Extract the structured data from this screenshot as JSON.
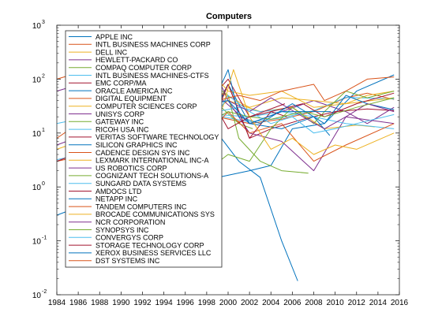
{
  "chart_data": {
    "type": "line",
    "title": "Computers",
    "xlabel": "",
    "ylabel": "",
    "y_scale": "log",
    "xlim": [
      1984,
      2016
    ],
    "ylim": [
      0.01,
      1000
    ],
    "grid": false,
    "legend_position": "top-left",
    "x_ticks": [
      1984,
      1986,
      1988,
      1990,
      1992,
      1994,
      1996,
      1998,
      2000,
      2002,
      2004,
      2006,
      2008,
      2010,
      2012,
      2014,
      2016
    ],
    "x_tick_labels": [
      "1984",
      "1986",
      "1988",
      "1990",
      "1992",
      "1994",
      "1996",
      "1998",
      "2000",
      "2002",
      "2004",
      "2006",
      "2008",
      "2010",
      "2012",
      "2014",
      "2016"
    ],
    "y_ticks": [
      0.01,
      0.1,
      1,
      10,
      100,
      1000
    ],
    "y_tick_labels": [
      {
        "base": "10",
        "exp": "-2"
      },
      {
        "base": "10",
        "exp": "-1"
      },
      {
        "base": "10",
        "exp": "0"
      },
      {
        "base": "10",
        "exp": "1"
      },
      {
        "base": "10",
        "exp": "2"
      },
      {
        "base": "10",
        "exp": "3"
      }
    ],
    "series": [
      {
        "name": "APPLE INC",
        "color": "#0072BD",
        "x": [
          1984,
          1987,
          1990,
          1993,
          1996,
          1999,
          2002,
          2004,
          2006,
          2009,
          2012,
          2015.5
        ],
        "y": [
          0.3,
          0.5,
          0.3,
          0.6,
          0.3,
          1.5,
          2,
          2.5,
          12,
          15,
          60,
          120
        ]
      },
      {
        "name": "INTL BUSINESS MACHINES CORP",
        "color": "#D95319",
        "x": [
          1984,
          1987,
          1990,
          1993,
          1996,
          1999,
          2002,
          2005,
          2008,
          2011,
          2013,
          2015.5
        ],
        "y": [
          3,
          4,
          3,
          1.5,
          4,
          20,
          15,
          18,
          25,
          45,
          55,
          42
        ]
      },
      {
        "name": "DELL INC",
        "color": "#EDB120",
        "x": [
          1988.5,
          1990,
          1993,
          1995,
          1998,
          2000,
          2003,
          2006,
          2009,
          2012,
          2013.7
        ],
        "y": [
          0.12,
          0.06,
          0.3,
          0.5,
          20,
          40,
          25,
          30,
          12,
          14,
          13
        ]
      },
      {
        "name": "HEWLETT-PACKARD CO",
        "color": "#7E2F8E",
        "x": [
          1984,
          1987,
          1990,
          1993,
          1996,
          1999,
          2002,
          2005,
          2008,
          2011,
          2013,
          2015.5
        ],
        "y": [
          6,
          10,
          5,
          10,
          20,
          50,
          15,
          25,
          40,
          25,
          15,
          30
        ]
      },
      {
        "name": "COMPAQ COMPUTER CORP",
        "color": "#77AC30",
        "x": [
          1985,
          1987,
          1990,
          1993,
          1996,
          1999,
          2001,
          2002.3
        ],
        "y": [
          0.8,
          2,
          1.5,
          3,
          10,
          35,
          15,
          12
        ]
      },
      {
        "name": "INTL BUSINESS MACHINES-CTFS",
        "color": "#4DBEEE",
        "x": [
          1984,
          1987,
          1990,
          1993,
          1996,
          1999,
          2002,
          2005,
          2008,
          2011,
          2015.5
        ],
        "y": [
          3.2,
          4.3,
          3.2,
          1.6,
          4.2,
          21,
          16,
          19,
          26,
          46,
          43
        ]
      },
      {
        "name": "EMC CORP/MA",
        "color": "#A2142F",
        "x": [
          1988,
          1990,
          1992,
          1995,
          1998,
          2000,
          2002,
          2004,
          2007,
          2010,
          2013,
          2015.5
        ],
        "y": [
          0.4,
          0.2,
          0.8,
          3,
          15,
          80,
          8,
          12,
          18,
          25,
          28,
          26
        ]
      },
      {
        "name": "ORACLE AMERICA INC",
        "color": "#0072BD",
        "x": [
          1987,
          1990,
          1992,
          1995,
          1998,
          2000,
          2002,
          2005,
          2008,
          2009.5
        ],
        "y": [
          1,
          0.5,
          1.5,
          5,
          12,
          80,
          15,
          12,
          20,
          9
        ]
      },
      {
        "name": "DIGITAL EQUIPMENT",
        "color": "#D95319",
        "x": [
          1984,
          1987,
          1990,
          1993,
          1995,
          1997,
          1998.1
        ],
        "y": [
          100,
          150,
          60,
          40,
          50,
          40,
          35
        ]
      },
      {
        "name": "COMPUTER SCIENCES CORP",
        "color": "#EDB120",
        "x": [
          1984,
          1987,
          1990,
          1993,
          1996,
          1999,
          2002,
          2005,
          2008,
          2011,
          2013,
          2015.5
        ],
        "y": [
          5,
          8,
          10,
          20,
          30,
          60,
          30,
          45,
          40,
          35,
          50,
          60
        ]
      },
      {
        "name": "UNISYS CORP",
        "color": "#7E2F8E",
        "x": [
          1984,
          1987,
          1990,
          1993,
          1996,
          1998,
          2000,
          2002,
          2005,
          2008,
          2011,
          2015.5
        ],
        "y": [
          60,
          90,
          20,
          10,
          8,
          300,
          40,
          10,
          7,
          2,
          20,
          15
        ]
      },
      {
        "name": "GATEWAY INC",
        "color": "#77AC30",
        "x": [
          1993,
          1995,
          1997,
          1999,
          2000,
          2001,
          2003,
          2005,
          2007.5
        ],
        "y": [
          10,
          20,
          25,
          70,
          50,
          8,
          3,
          2,
          1.8
        ]
      },
      {
        "name": "RICOH USA INC",
        "color": "#4DBEEE",
        "x": [
          1984,
          1987,
          1990,
          1993,
          1996,
          1999,
          2002,
          2005,
          2008,
          2011,
          2015.5
        ],
        "y": [
          15,
          20,
          25,
          18,
          20,
          22,
          20,
          25,
          20,
          15,
          12
        ]
      },
      {
        "name": "VERITAS SOFTWARE TECHNOLOGY",
        "color": "#A2142F",
        "x": [
          1993,
          1995,
          1997,
          1999,
          2000,
          2002,
          2004,
          2005.5
        ],
        "y": [
          3,
          8,
          15,
          60,
          100,
          20,
          25,
          20
        ]
      },
      {
        "name": "SILICON GRAPHICS INC",
        "color": "#0072BD",
        "x": [
          1987,
          1990,
          1993,
          1995,
          1997,
          1999,
          2001,
          2003,
          2005,
          2006.5
        ],
        "y": [
          3,
          5,
          10,
          30,
          20,
          10,
          3,
          1.5,
          0.1,
          0.018
        ]
      },
      {
        "name": "CADENCE DESIGN SYS INC",
        "color": "#D95319",
        "x": [
          1987,
          1990,
          1993,
          1996,
          1999,
          2000,
          2002,
          2005,
          2008,
          2011,
          2015.5
        ],
        "y": [
          2,
          3,
          4,
          10,
          15,
          25,
          10,
          15,
          3,
          6,
          15
        ]
      },
      {
        "name": "LEXMARK INTERNATIONAL INC-A",
        "color": "#EDB120",
        "x": [
          1995,
          1997,
          1999,
          2000,
          2002,
          2005,
          2008,
          2011,
          2015.5
        ],
        "y": [
          15,
          40,
          100,
          60,
          50,
          60,
          30,
          35,
          45
        ]
      },
      {
        "name": "US ROBOTICS CORP",
        "color": "#7E2F8E",
        "x": [
          1989,
          1991,
          1993,
          1995,
          1996.5
        ],
        "y": [
          8,
          15,
          30,
          70,
          80
        ]
      },
      {
        "name": "COGNIZANT TECH SOLUTIONS-A",
        "color": "#77AC30",
        "x": [
          1998,
          2000,
          2002,
          2004,
          2006,
          2008,
          2009,
          2011,
          2013,
          2015.5
        ],
        "y": [
          2,
          4,
          3,
          12,
          30,
          15,
          25,
          60,
          45,
          60
        ]
      },
      {
        "name": "SUNGARD DATA SYSTEMS",
        "color": "#4DBEEE",
        "x": [
          1987,
          1990,
          1993,
          1996,
          1999,
          2001,
          2003,
          2005.3
        ],
        "y": [
          3,
          4,
          6,
          12,
          25,
          30,
          25,
          28
        ]
      },
      {
        "name": "AMDOCS LTD",
        "color": "#A2142F",
        "x": [
          1998.5,
          2000,
          2002,
          2004,
          2007,
          2009,
          2012,
          2015.5
        ],
        "y": [
          15,
          80,
          8,
          25,
          35,
          20,
          35,
          55
        ]
      },
      {
        "name": "NETAPP INC",
        "color": "#0072BD",
        "x": [
          1996,
          1998,
          2000,
          2001,
          2003,
          2006,
          2008,
          2009,
          2011,
          2013,
          2015.5
        ],
        "y": [
          8,
          20,
          150,
          20,
          15,
          35,
          20,
          15,
          50,
          35,
          27
        ]
      },
      {
        "name": "TANDEM COMPUTERS INC",
        "color": "#D95319",
        "x": [
          1984,
          1986,
          1988,
          1990,
          1992,
          1994,
          1996,
          1997.4
        ],
        "y": [
          8,
          15,
          10,
          8,
          10,
          12,
          10,
          11
        ]
      },
      {
        "name": "BROCADE COMMUNICATIONS SYS",
        "color": "#EDB120",
        "x": [
          1999.5,
          2000.5,
          2002,
          2004,
          2006,
          2008,
          2010,
          2012,
          2015.5
        ],
        "y": [
          30,
          150,
          20,
          5,
          8,
          4,
          6,
          5,
          10
        ]
      },
      {
        "name": "NCR CORPORATION",
        "color": "#7E2F8E",
        "x": [
          1996.5,
          1998,
          2000,
          2002,
          2004,
          2007,
          2009,
          2011,
          2013,
          2015.5
        ],
        "y": [
          30,
          35,
          40,
          25,
          45,
          20,
          12,
          20,
          35,
          25
        ]
      },
      {
        "name": "SYNOPSYS INC",
        "color": "#77AC30",
        "x": [
          1992,
          1994,
          1996,
          1998,
          2000,
          2002,
          2004,
          2007,
          2009,
          2012,
          2015.5
        ],
        "y": [
          5,
          8,
          12,
          15,
          25,
          20,
          18,
          25,
          20,
          30,
          45
        ]
      },
      {
        "name": "CONVERGYS CORP",
        "color": "#4DBEEE",
        "x": [
          1998.5,
          2000,
          2002,
          2004,
          2006,
          2008,
          2010,
          2012,
          2015.5
        ],
        "y": [
          15,
          50,
          25,
          15,
          20,
          10,
          12,
          15,
          22
        ]
      },
      {
        "name": "STORAGE TECHNOLOGY CORP",
        "color": "#A2142F",
        "x": [
          1984,
          1987,
          1990,
          1993,
          1996,
          1998,
          2000,
          2002,
          2005.3
        ],
        "y": [
          3,
          5,
          10,
          25,
          30,
          60,
          12,
          20,
          35
        ]
      },
      {
        "name": "XEROX BUSINESS SERVICES LLC",
        "color": "#0072BD",
        "x": [
          1988,
          1991,
          1994,
          1997,
          2000,
          2002,
          2005,
          2009.6
        ],
        "y": [
          10,
          15,
          20,
          30,
          40,
          15,
          25,
          25
        ]
      },
      {
        "name": "DST SYSTEMS INC",
        "color": "#D95319",
        "x": [
          1995,
          1997,
          1999,
          2001,
          2003,
          2005,
          2008,
          2009,
          2011,
          2013,
          2015.5
        ],
        "y": [
          10,
          25,
          40,
          50,
          40,
          60,
          80,
          40,
          60,
          100,
          110
        ]
      }
    ]
  }
}
